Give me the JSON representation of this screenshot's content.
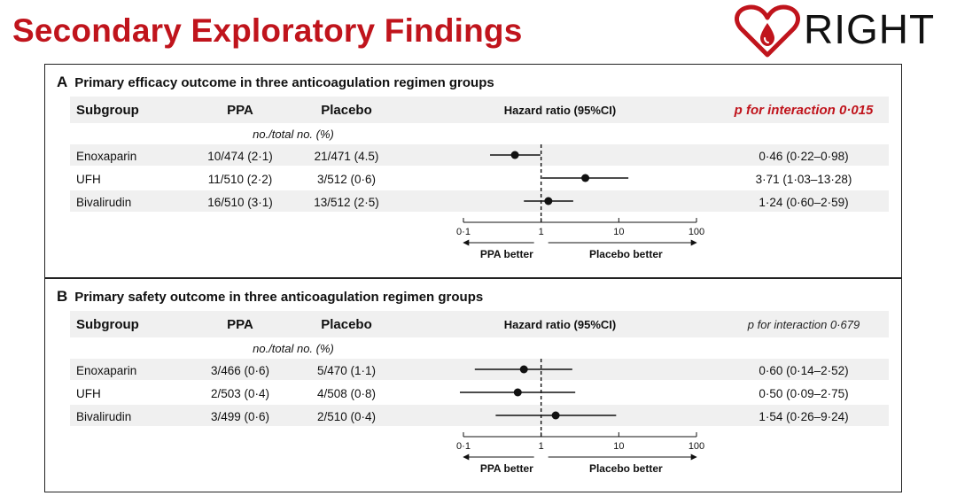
{
  "page_title": "Secondary Exploratory Findings",
  "logo": {
    "text": "RIGHT",
    "icon": "heart-drop-icon",
    "color": "#c0141c"
  },
  "columns": {
    "subgroup": "Subgroup",
    "ppa": "PPA",
    "placebo": "Placebo",
    "hazard_ratio": "Hazard ratio  (95%CI)",
    "units": "no./total no. (%)"
  },
  "axis": {
    "scale": "log",
    "range": [
      0.1,
      100
    ],
    "ticks": [
      "0·1",
      "1",
      "10",
      "100"
    ],
    "tick_values": [
      0.1,
      1,
      10,
      100
    ],
    "reference": 1
  },
  "direction_labels": {
    "left": "PPA better",
    "right": "Placebo better"
  },
  "chart_data": [
    {
      "type": "forest",
      "letter": "A",
      "title": "Primary efficacy outcome in three anticoagulation regimen groups",
      "p_interaction": "p for interaction 0·015",
      "rows": [
        {
          "subgroup": "Enoxaparin",
          "ppa": "10/474 (2·1)",
          "placebo": "21/471 (4.5)",
          "hr": 0.46,
          "lo": 0.22,
          "hi": 0.98,
          "hr_text": "0·46 (0·22–0·98)"
        },
        {
          "subgroup": "UFH",
          "ppa": "11/510 (2·2)",
          "placebo": "3/512 (0·6)",
          "hr": 3.71,
          "lo": 1.03,
          "hi": 13.28,
          "hr_text": "3·71 (1·03–13·28)"
        },
        {
          "subgroup": "Bivalirudin",
          "ppa": "16/510 (3·1)",
          "placebo": "13/512 (2·5)",
          "hr": 1.24,
          "lo": 0.6,
          "hi": 2.59,
          "hr_text": "1·24 (0·60–2·59)"
        }
      ]
    },
    {
      "type": "forest",
      "letter": "B",
      "title": "Primary safety outcome in three anticoagulation regimen groups",
      "p_interaction": "p for interaction 0·679",
      "rows": [
        {
          "subgroup": "Enoxaparin",
          "ppa": "3/466 (0·6)",
          "placebo": "5/470 (1·1)",
          "hr": 0.6,
          "lo": 0.14,
          "hi": 2.52,
          "hr_text": "0·60 (0·14–2·52)"
        },
        {
          "subgroup": "UFH",
          "ppa": "2/503 (0·4)",
          "placebo": "4/508 (0·8)",
          "hr": 0.5,
          "lo": 0.09,
          "hi": 2.75,
          "hr_text": "0·50 (0·09–2·75)"
        },
        {
          "subgroup": "Bivalirudin",
          "ppa": "3/499 (0·6)",
          "placebo": "2/510 (0·4)",
          "hr": 1.54,
          "lo": 0.26,
          "hi": 9.24,
          "hr_text": "1·54 (0·26–9·24)"
        }
      ]
    }
  ]
}
